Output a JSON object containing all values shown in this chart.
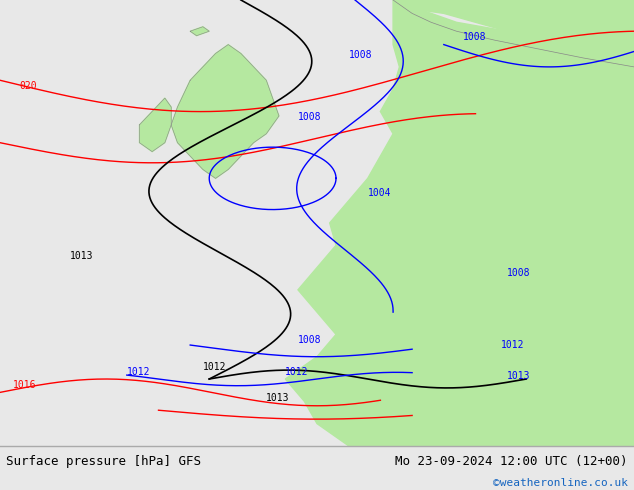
{
  "title_left": "Surface pressure [hPa] GFS",
  "title_right": "Mo 23-09-2024 12:00 UTC (12+00)",
  "credit": "©weatheronline.co.uk",
  "bg_color": "#e8e8e8",
  "land_color": "#b5e8a0",
  "border_color": "#888888",
  "fig_width": 6.34,
  "fig_height": 4.9,
  "dpi": 100
}
